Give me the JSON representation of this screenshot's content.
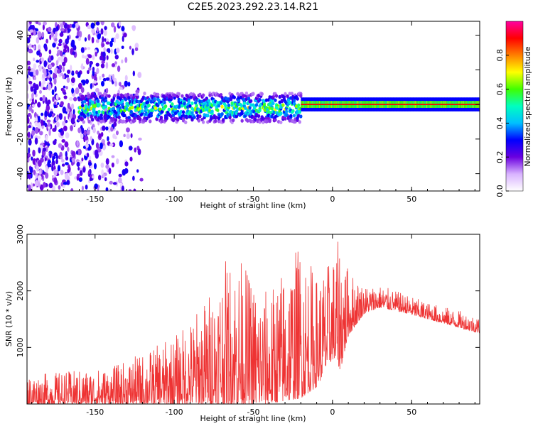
{
  "title": "C2E5.2023.292.23.14.R21",
  "chart_data": [
    {
      "type": "heatmap",
      "xlabel": "Height of straight line (km)",
      "ylabel": "Frequency (Hz)",
      "xlim": [
        -193,
        93
      ],
      "ylim": [
        -50,
        48
      ],
      "xticks": [
        -150,
        -100,
        -50,
        0,
        50
      ],
      "yticks": [
        -40,
        -20,
        0,
        20,
        40
      ],
      "colorbar": {
        "label": "Normalized spectral amplitude",
        "range": [
          0.0,
          1.0
        ],
        "ticks": [
          0.0,
          0.2,
          0.4,
          0.6,
          0.8
        ],
        "tick_labels": [
          "0.0",
          "0.2",
          "0.4",
          "0.6",
          "0.8"
        ],
        "colormap": [
          "#ffffff",
          "#d9b3ff",
          "#6a00e0",
          "#0000ff",
          "#00c0ff",
          "#00ffc0",
          "#40ff00",
          "#ffff00",
          "#ff8000",
          "#ff0000",
          "#ff00a0"
        ]
      },
      "features": [
        {
          "description": "scattered purple noise",
          "x_range": [
            -193,
            -120
          ],
          "y_range": [
            -50,
            48
          ],
          "amplitude": 0.25
        },
        {
          "description": "spectral band",
          "x_range": [
            -160,
            -20
          ],
          "center_freq": -2,
          "half_width": 6,
          "amplitude": 0.5
        },
        {
          "description": "narrow carrier line",
          "x_range": [
            -20,
            93
          ],
          "center_freq": 0,
          "half_width": 2,
          "amplitude": 0.9
        }
      ]
    },
    {
      "type": "line",
      "xlabel": "Height of straight line (km)",
      "ylabel": "SNR (10 * v/v)",
      "xlim": [
        -193,
        93
      ],
      "ylim": [
        0,
        3000
      ],
      "xticks": [
        -150,
        -100,
        -50,
        0,
        50
      ],
      "yticks": [
        1000,
        2000,
        3000
      ],
      "color": "#ee3333",
      "series_envelope": {
        "x": [
          -193,
          -180,
          -160,
          -140,
          -120,
          -100,
          -90,
          -80,
          -70,
          -60,
          -50,
          -40,
          -30,
          -20,
          -10,
          0,
          5,
          10,
          20,
          30,
          40,
          60,
          80,
          93
        ],
        "low": [
          0,
          0,
          0,
          0,
          0,
          0,
          0,
          0,
          0,
          0,
          0,
          0,
          50,
          100,
          300,
          800,
          600,
          1200,
          1600,
          1700,
          1650,
          1500,
          1350,
          1250
        ],
        "high": [
          500,
          550,
          600,
          650,
          900,
          1200,
          1500,
          1900,
          2500,
          2700,
          2200,
          2000,
          2500,
          2900,
          2300,
          2600,
          3000,
          2400,
          2100,
          2100,
          2000,
          1800,
          1650,
          1550
        ]
      }
    }
  ]
}
